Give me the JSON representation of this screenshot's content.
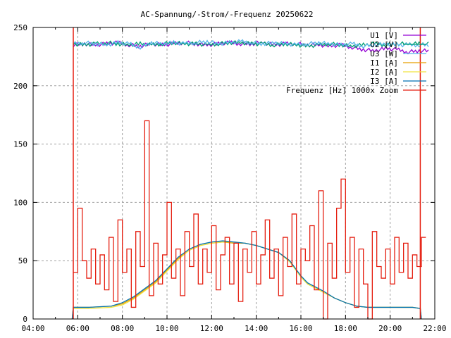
{
  "chart_data": {
    "type": "line",
    "title": "AC-Spannung/-Strom/-Frequenz 20250622",
    "xlabel": "",
    "ylabel": "",
    "xlim": [
      4,
      22
    ],
    "ylim": [
      0,
      250
    ],
    "xticks": [
      {
        "v": 4,
        "label": "04:00"
      },
      {
        "v": 6,
        "label": "06:00"
      },
      {
        "v": 8,
        "label": "08:00"
      },
      {
        "v": 10,
        "label": "10:00"
      },
      {
        "v": 12,
        "label": "12:00"
      },
      {
        "v": 14,
        "label": "14:00"
      },
      {
        "v": 16,
        "label": "16:00"
      },
      {
        "v": 18,
        "label": "18:00"
      },
      {
        "v": 20,
        "label": "20:00"
      },
      {
        "v": 22,
        "label": "22:00"
      }
    ],
    "yticks": [
      {
        "v": 0,
        "label": "0"
      },
      {
        "v": 50,
        "label": "50"
      },
      {
        "v": 100,
        "label": "100"
      },
      {
        "v": 150,
        "label": "150"
      },
      {
        "v": 200,
        "label": "200"
      },
      {
        "v": 250,
        "label": "250"
      }
    ],
    "grid": true,
    "legend_position": "top-right",
    "series": [
      {
        "name": "U1 [V]",
        "color": "#9400d3",
        "t0": 5.8,
        "step": 0.5,
        "values": [
          235,
          236,
          235,
          236,
          237,
          235,
          234,
          236,
          235,
          236,
          237,
          236,
          235,
          236,
          237,
          236,
          236,
          237,
          235,
          236,
          236,
          235,
          235,
          234,
          235,
          233,
          231,
          230,
          232,
          231,
          229,
          230
        ]
      },
      {
        "name": "U2 [V]",
        "color": "#009e73",
        "t0": 5.8,
        "step": 0.5,
        "values": [
          236,
          235,
          236,
          237,
          236,
          235,
          236,
          235,
          236,
          237,
          236,
          236,
          235,
          236,
          237,
          237,
          236,
          236,
          235,
          236,
          235,
          234,
          235,
          236,
          235,
          234,
          235,
          236,
          235,
          236,
          236,
          236
        ]
      },
      {
        "name": "U3 [W]",
        "color": "#56b4e9",
        "t0": 5.8,
        "step": 0.5,
        "values": [
          236,
          237,
          236,
          235,
          237,
          236,
          233,
          237,
          236,
          237,
          236,
          237,
          238,
          236,
          237,
          238,
          237,
          236,
          237,
          236,
          235,
          236,
          237,
          236,
          235,
          236,
          234,
          235,
          236,
          235,
          235,
          235
        ]
      },
      {
        "name": "I1 [A]",
        "color": "#e69f00",
        "t": [
          5.75,
          5.8,
          6.5,
          7.5,
          8.0,
          8.5,
          9.0,
          9.5,
          10.0,
          10.5,
          11.0,
          11.5,
          12.0,
          12.5,
          13.0,
          13.5,
          14.0,
          14.5,
          15.0,
          15.5,
          16.0,
          16.3,
          17.0,
          17.5,
          18.0,
          18.5,
          19.0,
          20.0,
          21.0,
          21.35,
          21.4
        ],
        "values": [
          0,
          10,
          10,
          11,
          13,
          18,
          25,
          32,
          42,
          52,
          59,
          63,
          65,
          66,
          65,
          65,
          63,
          60,
          57,
          50,
          36,
          30,
          23,
          18,
          14,
          11,
          10,
          10,
          10,
          9,
          0
        ]
      },
      {
        "name": "I2 [A]",
        "color": "#f0e442",
        "t": [
          5.75,
          5.8,
          6.5,
          7.5,
          8.0,
          8.5,
          9.0,
          9.5,
          10.0,
          10.5,
          11.0,
          11.5,
          12.0,
          12.5,
          13.0,
          13.5,
          14.0,
          14.5,
          15.0,
          15.5,
          16.0,
          16.3,
          17.0,
          17.5,
          18.0,
          18.5,
          19.0,
          20.0,
          21.0,
          21.35,
          21.4
        ],
        "values": [
          0,
          9,
          9,
          10,
          12,
          17,
          24,
          31,
          41,
          51,
          59,
          63,
          65,
          66,
          66,
          65,
          63,
          60,
          57,
          49,
          36,
          30,
          23,
          18,
          14,
          11,
          10,
          10,
          10,
          9,
          0
        ]
      },
      {
        "name": "I3 [A]",
        "color": "#0072b2",
        "t": [
          5.75,
          5.8,
          6.5,
          7.5,
          8.0,
          8.5,
          9.0,
          9.5,
          10.0,
          10.5,
          11.0,
          11.5,
          12.0,
          12.5,
          13.0,
          13.5,
          14.0,
          14.5,
          15.0,
          15.5,
          16.0,
          16.3,
          17.0,
          17.5,
          18.0,
          18.5,
          19.0,
          20.0,
          21.0,
          21.35,
          21.4
        ],
        "values": [
          0,
          10,
          10,
          11,
          14,
          19,
          26,
          33,
          43,
          53,
          60,
          64,
          66,
          67,
          66,
          65,
          63,
          60,
          57,
          50,
          37,
          31,
          24,
          18,
          14,
          11,
          10,
          10,
          10,
          9,
          0
        ]
      },
      {
        "name": "Frequenz [Hz] 1000x Zoom",
        "color": "#e51e10",
        "t0": 5.8,
        "step": 0.2,
        "values": [
          40,
          95,
          50,
          35,
          60,
          30,
          55,
          25,
          70,
          15,
          85,
          40,
          60,
          10,
          75,
          45,
          170,
          20,
          65,
          30,
          55,
          100,
          35,
          60,
          20,
          75,
          45,
          90,
          30,
          60,
          40,
          80,
          25,
          55,
          70,
          30,
          65,
          15,
          60,
          40,
          75,
          30,
          55,
          85,
          35,
          60,
          20,
          70,
          45,
          90,
          30,
          60,
          50,
          80,
          25,
          110,
          0,
          65,
          35,
          95,
          120,
          40,
          70,
          10,
          60,
          30,
          0,
          75,
          45,
          35,
          60,
          30,
          70,
          40,
          65,
          35,
          55,
          45,
          70
        ],
        "spikes": [
          5.8,
          21.35
        ]
      }
    ]
  }
}
